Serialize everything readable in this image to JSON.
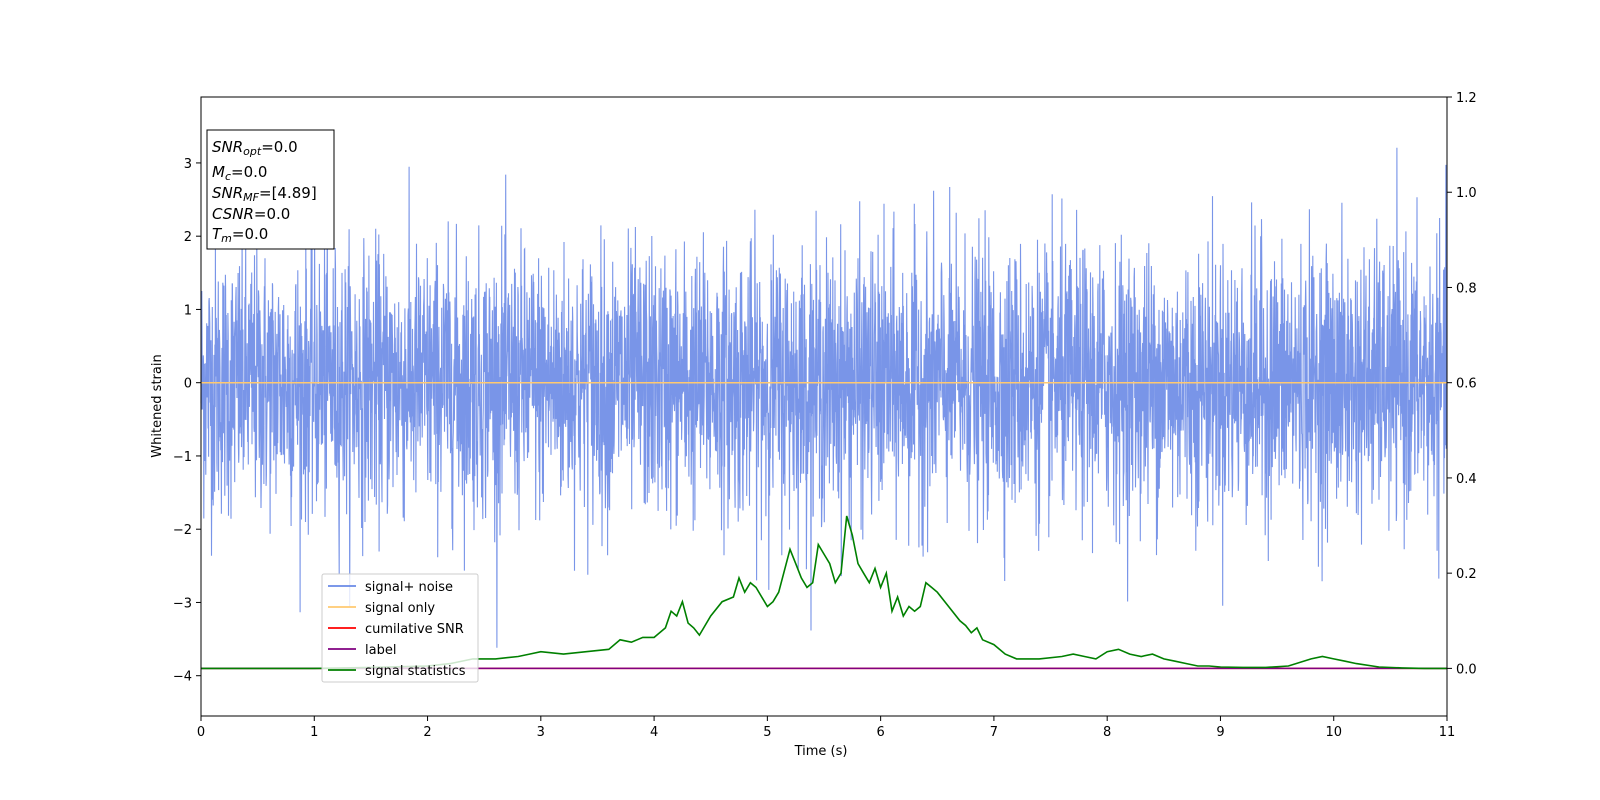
{
  "chart_data": {
    "type": "line",
    "xlabel": "Time (s)",
    "ylabel": "Whitened strain",
    "xlim": [
      0,
      11
    ],
    "ylim_left": [
      -4.55,
      3.9
    ],
    "ylim_right": [
      -0.1,
      1.2
    ],
    "x_ticks": [
      0,
      1,
      2,
      3,
      4,
      5,
      6,
      7,
      8,
      9,
      10,
      11
    ],
    "y_ticks_left": [
      -4,
      -3,
      -2,
      -1,
      0,
      1,
      2,
      3
    ],
    "y_ticks_right": [
      0.0,
      0.2,
      0.4,
      0.6,
      0.8,
      1.0,
      1.2
    ],
    "y_tick_labels_left": [
      "−4",
      "−3",
      "−2",
      "−1",
      "0",
      "1",
      "2",
      "3"
    ],
    "y_tick_labels_right": [
      "0.0",
      "0.2",
      "0.4",
      "0.6",
      "0.8",
      "1.0",
      "1.2"
    ],
    "legend_position": "lower-left",
    "info_box": {
      "snr_opt": {
        "label": "SNR",
        "sub": "opt",
        "value": "=0.0"
      },
      "mc": {
        "label": "M",
        "sub": "c",
        "value": "=0.0"
      },
      "snr_mf": {
        "label": "SNR",
        "sub": "MF",
        "value": "=[4.89]"
      },
      "csnr": {
        "label": "CSNR",
        "value": "=0.0"
      },
      "tm": {
        "label": "T",
        "sub": "m",
        "value": "=0.0"
      }
    },
    "series": [
      {
        "name": "signal+ noise",
        "color": "#6a8ae6",
        "axis": "left",
        "description_stats": {
          "amplitude_std": 0.9,
          "sample_rate_hz": 400
        }
      },
      {
        "name": "signal only",
        "color": "#ffc970",
        "axis": "left",
        "constant_value": 0.0
      },
      {
        "name": "cumilative SNR",
        "color": "#ff0000",
        "axis": "right",
        "constant_value": 0.0
      },
      {
        "name": "label",
        "color": "#800080",
        "axis": "right",
        "constant_value": 0.0
      },
      {
        "name": "signal statistics",
        "color": "#008000",
        "axis": "right",
        "x": [
          0,
          0.5,
          1.0,
          1.5,
          2.0,
          2.2,
          2.4,
          2.6,
          2.8,
          2.9,
          3.0,
          3.2,
          3.4,
          3.6,
          3.7,
          3.8,
          3.9,
          4.0,
          4.1,
          4.15,
          4.2,
          4.25,
          4.3,
          4.35,
          4.4,
          4.5,
          4.6,
          4.7,
          4.75,
          4.8,
          4.85,
          4.9,
          5.0,
          5.05,
          5.1,
          5.2,
          5.25,
          5.3,
          5.35,
          5.4,
          5.45,
          5.5,
          5.55,
          5.6,
          5.65,
          5.7,
          5.75,
          5.8,
          5.85,
          5.9,
          5.95,
          6.0,
          6.05,
          6.1,
          6.15,
          6.2,
          6.25,
          6.3,
          6.35,
          6.4,
          6.45,
          6.5,
          6.6,
          6.7,
          6.75,
          6.8,
          6.85,
          6.9,
          7.0,
          7.1,
          7.2,
          7.4,
          7.6,
          7.7,
          7.8,
          7.9,
          8.0,
          8.1,
          8.2,
          8.3,
          8.4,
          8.5,
          8.6,
          8.7,
          8.8,
          8.9,
          9.0,
          9.2,
          9.4,
          9.6,
          9.8,
          9.9,
          10.0,
          10.1,
          10.2,
          10.4,
          10.6,
          10.8,
          11.0
        ],
        "y": [
          0.0,
          0.0,
          0.0,
          0.002,
          0.005,
          0.01,
          0.02,
          0.02,
          0.025,
          0.03,
          0.035,
          0.03,
          0.035,
          0.04,
          0.06,
          0.055,
          0.065,
          0.065,
          0.085,
          0.12,
          0.11,
          0.14,
          0.095,
          0.085,
          0.07,
          0.11,
          0.14,
          0.15,
          0.19,
          0.16,
          0.18,
          0.17,
          0.13,
          0.14,
          0.16,
          0.25,
          0.22,
          0.19,
          0.17,
          0.18,
          0.26,
          0.24,
          0.22,
          0.18,
          0.2,
          0.32,
          0.28,
          0.22,
          0.2,
          0.18,
          0.21,
          0.17,
          0.2,
          0.12,
          0.15,
          0.11,
          0.13,
          0.12,
          0.13,
          0.18,
          0.17,
          0.16,
          0.13,
          0.1,
          0.09,
          0.075,
          0.085,
          0.06,
          0.05,
          0.03,
          0.02,
          0.02,
          0.025,
          0.03,
          0.025,
          0.02,
          0.035,
          0.04,
          0.03,
          0.025,
          0.03,
          0.02,
          0.015,
          0.01,
          0.005,
          0.005,
          0.003,
          0.002,
          0.002,
          0.005,
          0.02,
          0.025,
          0.02,
          0.015,
          0.01,
          0.003,
          0.001,
          0.0,
          0.0
        ]
      }
    ]
  }
}
